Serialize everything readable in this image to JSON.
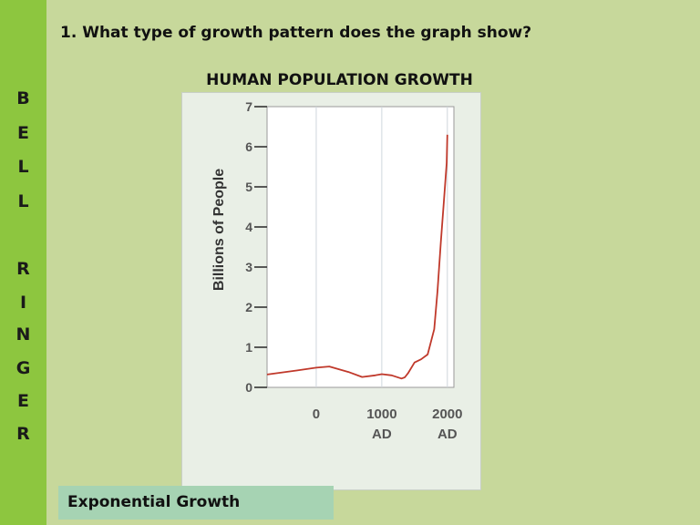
{
  "slide": {
    "side_letters": [
      "B",
      "E",
      "L",
      "L",
      "R",
      "I",
      "N",
      "G",
      "E",
      "R"
    ],
    "question": "1.  What type of growth pattern does the graph show?",
    "answer": "Exponential Growth"
  },
  "colors": {
    "sidebar": "#8dc63f",
    "background": "#c7d89b",
    "answer_box": "#a6d3b3",
    "line": "#c0392b"
  },
  "chart_data": {
    "type": "line",
    "title": "HUMAN POPULATION GROWTH",
    "xlabel": "",
    "ylabel": "Billions of People",
    "xlim": [
      -750,
      2100
    ],
    "ylim": [
      0,
      7
    ],
    "y_ticks": [
      "0",
      "1",
      "2",
      "3",
      "4",
      "5",
      "6",
      "7"
    ],
    "x_ticks": [
      {
        "value": 0,
        "lines": [
          "0"
        ]
      },
      {
        "value": 1000,
        "lines": [
          "1000",
          "AD"
        ]
      },
      {
        "value": 2000,
        "lines": [
          "2000",
          "AD"
        ]
      }
    ],
    "grid": "vertical at x ticks",
    "series": [
      {
        "x": [
          -750,
          -300,
          0,
          200,
          500,
          700,
          900,
          1000,
          1150,
          1300,
          1350,
          1400,
          1500,
          1600,
          1700,
          1800,
          1850,
          1900,
          1950,
          1990,
          2000
        ],
        "y": [
          0.32,
          0.42,
          0.49,
          0.52,
          0.38,
          0.26,
          0.3,
          0.33,
          0.3,
          0.22,
          0.25,
          0.35,
          0.62,
          0.7,
          0.82,
          1.45,
          2.4,
          3.6,
          4.7,
          5.6,
          6.3
        ]
      }
    ]
  }
}
